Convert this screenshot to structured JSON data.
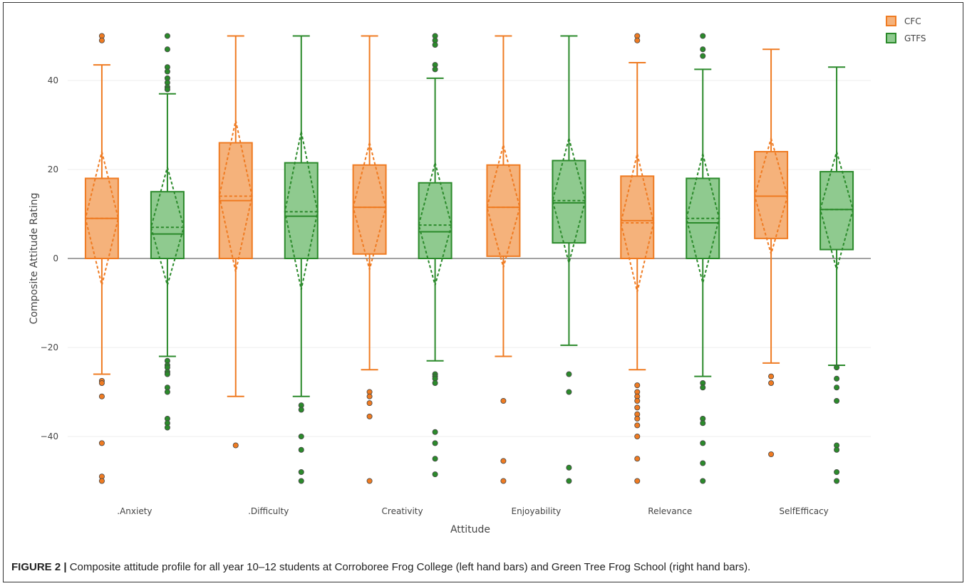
{
  "caption": {
    "label": "FIGURE 2 |",
    "text": "Composite attitude profile for all year 10–12 students at Corroboree Frog College (left hand bars) and Green Tree Frog School (right hand bars)."
  },
  "chart_data": {
    "type": "box",
    "xlabel": "Attitude",
    "ylabel": "Composite Attitude Rating",
    "ylim": [
      -52,
      52
    ],
    "yticks": [
      40,
      20,
      0,
      -20,
      -40
    ],
    "ytick_labels": [
      "40",
      "20",
      "0",
      "−20",
      "−40"
    ],
    "grid": true,
    "legend_position": "top-right",
    "categories": [
      ".Anxiety",
      ".Difficulty",
      "Creativity",
      "Enjoyability",
      "Relevance",
      "SelfEfficacy"
    ],
    "series": [
      {
        "name": "CFC",
        "color": "#ef7b22",
        "fill": "#f5b27b",
        "boxes": [
          {
            "lower_fence": -26,
            "q1": 0,
            "median": 9,
            "mean": 9,
            "q3": 18,
            "upper_fence": 43.5,
            "mean_lo": -6,
            "mean_hi": 24,
            "outliers": [
              50,
              49,
              -27.5,
              -28,
              -31,
              -41.5,
              -49,
              -50
            ]
          },
          {
            "lower_fence": -31,
            "q1": 0,
            "median": 13,
            "mean": 14,
            "q3": 26,
            "upper_fence": 50,
            "mean_lo": -3,
            "mean_hi": 31,
            "outliers": [
              -42
            ]
          },
          {
            "lower_fence": -25,
            "q1": 1,
            "median": 11.5,
            "mean": 11.5,
            "q3": 21,
            "upper_fence": 50,
            "mean_lo": -2.5,
            "mean_hi": 26,
            "outliers": [
              -30,
              -31,
              -32.5,
              -35.5,
              -50
            ]
          },
          {
            "lower_fence": -22,
            "q1": 0.5,
            "median": 11.5,
            "mean": 11.5,
            "q3": 21,
            "upper_fence": 50,
            "mean_lo": -2,
            "mean_hi": 25.5,
            "outliers": [
              -32,
              -45.5,
              -50
            ]
          },
          {
            "lower_fence": -25,
            "q1": 0,
            "median": 8.5,
            "mean": 8,
            "q3": 18.5,
            "upper_fence": 44,
            "mean_lo": -7.5,
            "mean_hi": 23.5,
            "outliers": [
              50,
              49,
              -28.5,
              -30,
              -31,
              -32,
              -33.5,
              -35,
              -36,
              -37.5,
              -40,
              -45,
              -50
            ]
          },
          {
            "lower_fence": -23.5,
            "q1": 4.5,
            "median": 14,
            "mean": 14,
            "q3": 24,
            "upper_fence": 47,
            "mean_lo": 1,
            "mean_hi": 27,
            "outliers": [
              -26.5,
              -28,
              -44
            ]
          }
        ]
      },
      {
        "name": "GTFS",
        "color": "#2b8a2b",
        "fill": "#8fca8f",
        "boxes": [
          {
            "lower_fence": -22,
            "q1": 0,
            "median": 5.5,
            "mean": 7,
            "q3": 15,
            "upper_fence": 37,
            "mean_lo": -6,
            "mean_hi": 20.5,
            "outliers": [
              50,
              47,
              43,
              42,
              40.5,
              39.5,
              38.5,
              38,
              -23,
              -24,
              -24.5,
              -25.5,
              -26,
              -29,
              -30,
              -36,
              -37,
              -38
            ]
          },
          {
            "lower_fence": -31,
            "q1": 0,
            "median": 9.5,
            "mean": 10.5,
            "q3": 21.5,
            "upper_fence": 50,
            "mean_lo": -7,
            "mean_hi": 28.5,
            "outliers": [
              -33,
              -34,
              -40,
              -43,
              -48,
              -50
            ]
          },
          {
            "lower_fence": -23,
            "q1": 0,
            "median": 6,
            "mean": 7.5,
            "q3": 17,
            "upper_fence": 40.5,
            "mean_lo": -6,
            "mean_hi": 21.5,
            "outliers": [
              50,
              49,
              48,
              43.5,
              42.5,
              -26,
              -26.5,
              -27,
              -28,
              -39,
              -41.5,
              -45,
              -48.5
            ]
          },
          {
            "lower_fence": -19.5,
            "q1": 3.5,
            "median": 12.5,
            "mean": 13,
            "q3": 22,
            "upper_fence": 50,
            "mean_lo": -1,
            "mean_hi": 27,
            "outliers": [
              -26,
              -30,
              -47,
              -50
            ]
          },
          {
            "lower_fence": -26.5,
            "q1": 0,
            "median": 8,
            "mean": 9,
            "q3": 18,
            "upper_fence": 42.5,
            "mean_lo": -5.5,
            "mean_hi": 23.5,
            "outliers": [
              50,
              47,
              45.5,
              -28,
              -29,
              -36,
              -37,
              -41.5,
              -46,
              -50
            ]
          },
          {
            "lower_fence": -24,
            "q1": 2,
            "median": 11,
            "mean": 11,
            "q3": 19.5,
            "upper_fence": 43,
            "mean_lo": -2.5,
            "mean_hi": 24,
            "outliers": [
              -24.5,
              -27,
              -29,
              -32,
              -42,
              -43,
              -48,
              -50
            ]
          }
        ]
      }
    ]
  }
}
